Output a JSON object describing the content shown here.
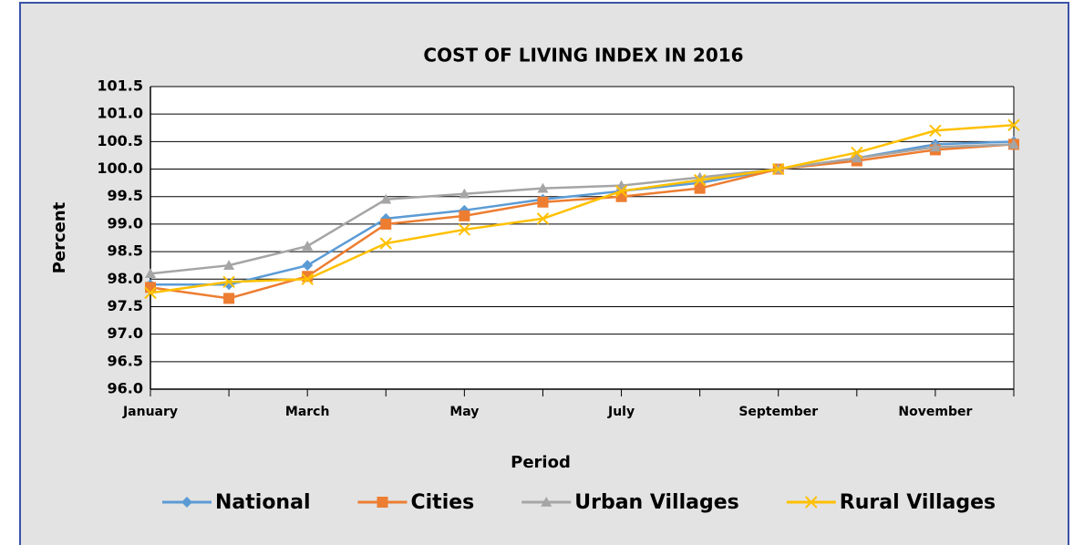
{
  "chart_data": {
    "type": "line",
    "title": "COST OF LIVING INDEX IN 2016",
    "x_label": "Period",
    "y_label": "Percent",
    "categories": [
      "January",
      null,
      "March",
      null,
      "May",
      null,
      "July",
      null,
      "September",
      null,
      "November",
      null
    ],
    "series": [
      {
        "name": "National",
        "color": "#5b9bd5",
        "marker": "diamond",
        "values": [
          97.9,
          97.9,
          98.25,
          99.1,
          99.25,
          99.45,
          99.6,
          99.75,
          100.0,
          100.2,
          100.45,
          100.5
        ]
      },
      {
        "name": "Cities",
        "color": "#ed7d31",
        "marker": "square",
        "values": [
          97.85,
          97.65,
          98.05,
          99.0,
          99.15,
          99.4,
          99.5,
          99.65,
          100.0,
          100.15,
          100.35,
          100.45
        ]
      },
      {
        "name": "Urban Villages",
        "color": "#a5a5a5",
        "marker": "triangle",
        "values": [
          98.1,
          98.25,
          98.6,
          99.45,
          99.55,
          99.65,
          99.7,
          99.85,
          100.0,
          100.2,
          100.4,
          100.45
        ]
      },
      {
        "name": "Rural Villages",
        "color": "#ffc000",
        "marker": "x",
        "values": [
          97.75,
          97.95,
          98.0,
          98.65,
          98.9,
          99.1,
          99.6,
          99.8,
          100.0,
          100.3,
          100.7,
          100.8
        ]
      }
    ],
    "ylim": [
      96.0,
      101.5
    ],
    "yticks": [
      {
        "value": 96.0,
        "label": "96.0"
      },
      {
        "value": 96.5,
        "label": "96.5"
      },
      {
        "value": 97.0,
        "label": "97.0"
      },
      {
        "value": 97.5,
        "label": "97.5"
      },
      {
        "value": 98.0,
        "label": "98.0"
      },
      {
        "value": 98.5,
        "label": "98.5"
      },
      {
        "value": 99.0,
        "label": "99.0"
      },
      {
        "value": 99.5,
        "label": "99.5"
      },
      {
        "value": 100.0,
        "label": "100.0"
      },
      {
        "value": 100.5,
        "label": "100.5"
      },
      {
        "value": 101.0,
        "label": "101.0"
      },
      {
        "value": 101.5,
        "label": "101.5"
      }
    ],
    "grid": true,
    "legend": "bottom"
  }
}
